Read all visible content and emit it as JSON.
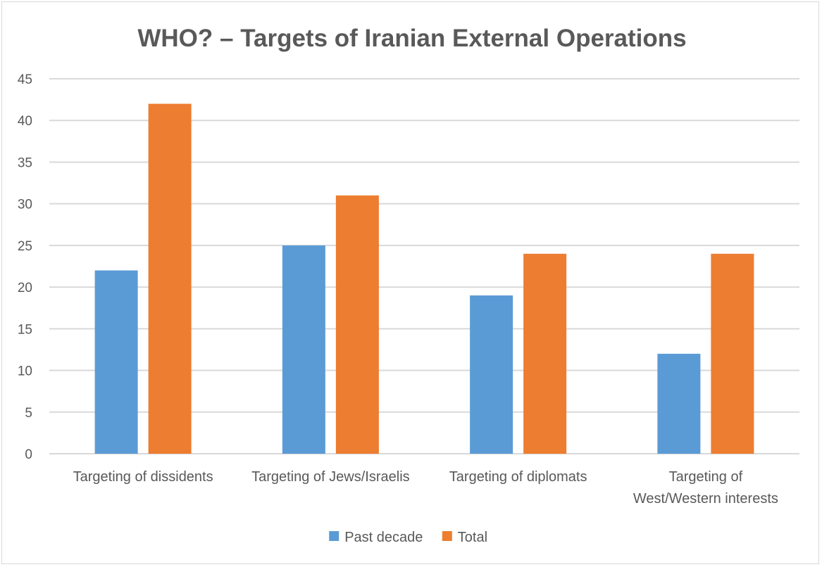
{
  "chart_data": {
    "type": "bar",
    "title": "WHO? –  Targets of Iranian External Operations",
    "xlabel": "",
    "ylabel": "",
    "categories": [
      [
        "Targeting of dissidents"
      ],
      [
        "Targeting of Jews/Israelis"
      ],
      [
        "Targeting of diplomats"
      ],
      [
        "Targeting of",
        "West/Western interests"
      ]
    ],
    "series": [
      {
        "name": "Past decade",
        "color": "#5b9bd5",
        "values": [
          22,
          25,
          19,
          12
        ]
      },
      {
        "name": "Total",
        "color": "#ed7d31",
        "values": [
          42,
          31,
          24,
          24
        ]
      }
    ],
    "ylim": [
      0,
      45
    ],
    "yticks": [
      0,
      5,
      10,
      15,
      20,
      25,
      30,
      35,
      40,
      45
    ],
    "grid": true,
    "legend": "bottom-center",
    "colors": {
      "text": "#595959",
      "grid": "#d9d9d9",
      "border": "#d9d9d9"
    }
  }
}
